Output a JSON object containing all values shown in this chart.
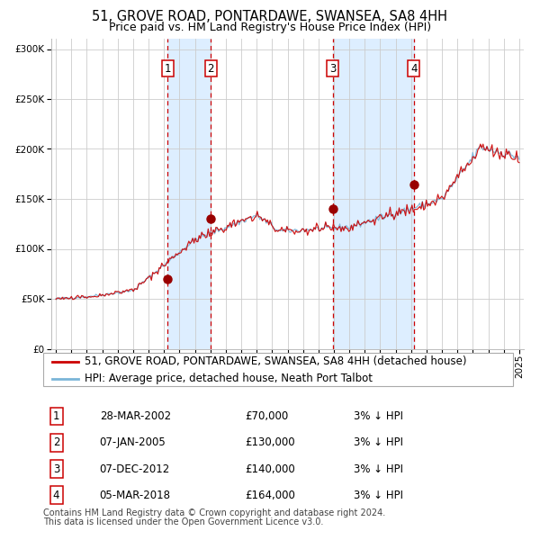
{
  "title": "51, GROVE ROAD, PONTARDAWE, SWANSEA, SA8 4HH",
  "subtitle": "Price paid vs. HM Land Registry's House Price Index (HPI)",
  "sale_label": "51, GROVE ROAD, PONTARDAWE, SWANSEA, SA8 4HH (detached house)",
  "hpi_label": "HPI: Average price, detached house, Neath Port Talbot",
  "footer1": "Contains HM Land Registry data © Crown copyright and database right 2024.",
  "footer2": "This data is licensed under the Open Government Licence v3.0.",
  "transactions": [
    {
      "num": 1,
      "date": "28-MAR-2002",
      "price": 70000,
      "hpi_pct": "3% ↓ HPI",
      "year": 2002.23
    },
    {
      "num": 2,
      "date": "07-JAN-2005",
      "price": 130000,
      "hpi_pct": "3% ↓ HPI",
      "year": 2005.03
    },
    {
      "num": 3,
      "date": "07-DEC-2012",
      "price": 140000,
      "hpi_pct": "3% ↓ HPI",
      "year": 2012.93
    },
    {
      "num": 4,
      "date": "05-MAR-2018",
      "price": 164000,
      "hpi_pct": "3% ↓ HPI",
      "year": 2018.17
    }
  ],
  "ylim": [
    0,
    310000
  ],
  "yticks": [
    0,
    50000,
    100000,
    150000,
    200000,
    250000,
    300000
  ],
  "ytick_labels": [
    "£0",
    "£50K",
    "£100K",
    "£150K",
    "£200K",
    "£250K",
    "£300K"
  ],
  "xlim_start": 1994.7,
  "xlim_end": 2025.3,
  "hpi_color": "#7ab5d8",
  "sale_color": "#cc0000",
  "shade_color": "#ddeeff",
  "grid_color": "#cccccc",
  "dashed_color": "#cc0000",
  "background_color": "#ffffff",
  "title_fontsize": 10.5,
  "subtitle_fontsize": 9,
  "tick_fontsize": 7.5,
  "legend_fontsize": 8.5,
  "table_fontsize": 8.5,
  "footer_fontsize": 7
}
